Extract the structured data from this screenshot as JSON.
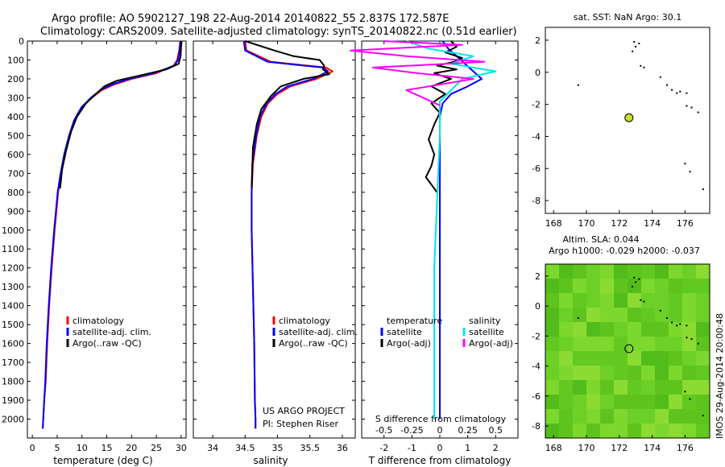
{
  "header": {
    "line1": "Argo profile: AO 5902127_198 22-Aug-2014 20140822_55 2.837S 172.587E",
    "line2": "Climatology: CARS2009. Satellite-adjusted climatology: synTS_20140822.nc (0.51d earlier)"
  },
  "colors": {
    "climatology": "#ff0000",
    "satellite": "#0000ff",
    "argo": "#000000",
    "salinity_satellite": "#00e5e5",
    "salinity_argo": "#ff00ff",
    "marker": "#c8e020",
    "sla_field": "#66cc22"
  },
  "chart_data": [
    {
      "type": "line",
      "panel": "temperature",
      "xlabel": "temperature (deg C)",
      "xlim": [
        -1,
        31
      ],
      "xticks": [
        "0",
        "5",
        "10",
        "15",
        "20",
        "25",
        "30"
      ],
      "ylim": [
        2100,
        0
      ],
      "yticks": [
        "0",
        "100",
        "200",
        "300",
        "400",
        "500",
        "600",
        "700",
        "800",
        "900",
        "1000",
        "1100",
        "1200",
        "1300",
        "1400",
        "1500",
        "1600",
        "1700",
        "1800",
        "1900",
        "2000"
      ],
      "legend": [
        "climatology",
        "satellite-adj. clim.",
        "Argo(..raw -QC)"
      ],
      "series": [
        {
          "name": "climatology",
          "color_key": "climatology",
          "x": [
            29.8,
            29.6,
            29.2,
            28.5,
            25.0,
            20.0,
            16.5,
            14.0,
            12.0,
            10.0,
            8.5,
            7.5,
            6.5,
            5.8,
            5.2,
            4.5,
            3.9,
            3.4,
            3.0,
            2.7,
            2.4,
            2.2,
            2.1
          ],
          "y": [
            0,
            50,
            100,
            130,
            170,
            200,
            230,
            260,
            300,
            350,
            420,
            500,
            600,
            700,
            800,
            1000,
            1200,
            1400,
            1600,
            1800,
            1900,
            2000,
            2050
          ]
        },
        {
          "name": "satellite-adj. clim.",
          "color_key": "satellite",
          "x": [
            29.9,
            29.7,
            29.4,
            28.6,
            24.5,
            19.5,
            16.0,
            13.7,
            11.8,
            9.9,
            8.4,
            7.4,
            6.4,
            5.7,
            5.1,
            4.4,
            3.8,
            3.3,
            2.9,
            2.6,
            2.4,
            2.2,
            2.1
          ],
          "y": [
            0,
            50,
            100,
            130,
            170,
            200,
            230,
            260,
            300,
            350,
            420,
            500,
            600,
            700,
            800,
            1000,
            1200,
            1400,
            1600,
            1800,
            1900,
            2000,
            2050
          ]
        },
        {
          "name": "Argo(..raw -QC)",
          "color_key": "argo",
          "x": [
            30.1,
            30.0,
            29.9,
            29.5,
            27.0,
            22.0,
            17.0,
            14.5,
            12.8,
            10.8,
            9.0,
            7.8,
            6.8,
            6.0,
            5.6
          ],
          "y": [
            0,
            30,
            80,
            120,
            150,
            180,
            210,
            240,
            280,
            330,
            400,
            480,
            580,
            680,
            780
          ]
        }
      ]
    },
    {
      "type": "line",
      "panel": "salinity",
      "xlabel": "salinity",
      "xlim": [
        33.7,
        36.2
      ],
      "xticks": [
        "34",
        "34.5",
        "35",
        "35.5",
        "36"
      ],
      "ylim": [
        2100,
        0
      ],
      "legend": [
        "climatology",
        "satellite-adj. clim.",
        "Argo(..raw -QC)"
      ],
      "annotation": [
        "US ARGO PROJECT",
        "PI: Stephen Riser"
      ],
      "series": [
        {
          "name": "climatology",
          "color_key": "climatology",
          "x": [
            34.5,
            34.52,
            34.9,
            35.75,
            35.85,
            35.6,
            35.2,
            35.0,
            34.85,
            34.75,
            34.68,
            34.62,
            34.6,
            34.6,
            34.62,
            34.64,
            34.65,
            34.66,
            34.66
          ],
          "y": [
            0,
            50,
            110,
            140,
            160,
            200,
            240,
            280,
            330,
            400,
            500,
            650,
            800,
            1000,
            1300,
            1600,
            1900,
            2000,
            2050
          ]
        },
        {
          "name": "satellite-adj. clim.",
          "color_key": "satellite",
          "x": [
            34.48,
            34.5,
            34.85,
            35.7,
            35.78,
            35.55,
            35.15,
            34.97,
            34.83,
            34.73,
            34.67,
            34.61,
            34.6,
            34.6,
            34.62,
            34.64,
            34.65,
            34.66,
            34.66
          ],
          "y": [
            0,
            50,
            110,
            140,
            160,
            200,
            240,
            280,
            330,
            400,
            500,
            650,
            800,
            1000,
            1300,
            1600,
            1900,
            2000,
            2050
          ]
        },
        {
          "name": "Argo(..raw -QC)",
          "color_key": "argo",
          "x": [
            34.5,
            34.95,
            35.25,
            35.65,
            35.72,
            35.7,
            35.8,
            35.4,
            35.05,
            34.9,
            34.75,
            34.68,
            34.62,
            34.6
          ],
          "y": [
            0,
            50,
            80,
            100,
            130,
            150,
            175,
            200,
            240,
            290,
            360,
            440,
            560,
            780
          ]
        }
      ]
    },
    {
      "type": "line",
      "panel": "difference",
      "xlabel": "T difference from climatology",
      "xlim": [
        -2.8,
        2.8
      ],
      "xticks": [
        "-2",
        "-1",
        "0",
        "1",
        "2"
      ],
      "x2label": "S difference from climatology",
      "x2ticks": [
        "-0.5",
        "-0.25",
        "0",
        "0.25",
        "0.5"
      ],
      "ylim": [
        2100,
        0
      ],
      "legend_left": [
        "temperature",
        "satellite",
        "Argo(-adj)"
      ],
      "legend_right": [
        "salinity",
        "satellite",
        "Argo(-adj)"
      ],
      "series": [
        {
          "name": "satellite",
          "color_key": "satellite",
          "x": [
            0.1,
            0.3,
            0.6,
            0.9,
            1.2,
            1.5,
            1.0,
            0.4,
            0.1,
            0.0,
            0.0,
            0.0,
            0.0
          ],
          "y": [
            0,
            40,
            80,
            120,
            160,
            200,
            240,
            280,
            330,
            400,
            600,
            1000,
            2000
          ]
        },
        {
          "name": "Argo(-adj)",
          "color_key": "argo",
          "x": [
            0.4,
            0.6,
            0.2,
            0.8,
            0.5,
            -0.1,
            0.6,
            -0.2,
            0.4,
            -0.3,
            0.2,
            -0.3,
            0.0,
            -0.2,
            -0.4,
            -0.2,
            -0.3,
            -0.5,
            -0.3,
            -0.1
          ],
          "y": [
            0,
            30,
            60,
            90,
            110,
            130,
            150,
            170,
            200,
            240,
            280,
            330,
            380,
            440,
            520,
            600,
            660,
            720,
            760,
            800
          ]
        },
        {
          "name": "satellite",
          "color_key": "salinity_satellite",
          "x": [
            -0.3,
            -0.1,
            0.3,
            0.1,
            0.5,
            0.2,
            0.1,
            0.0,
            0.0,
            -0.05,
            -0.05
          ],
          "y": [
            0,
            40,
            80,
            120,
            160,
            200,
            260,
            320,
            500,
            1200,
            2000
          ]
        },
        {
          "name": "Argo(-adj)",
          "color_key": "salinity_argo",
          "x": [
            -0.5,
            0.2,
            -0.8,
            -0.3,
            0.4,
            -0.6,
            -0.2,
            0.3,
            -0.3,
            0.0
          ],
          "y": [
            0,
            20,
            50,
            80,
            110,
            140,
            170,
            200,
            260,
            340
          ]
        }
      ]
    },
    {
      "type": "scatter",
      "panel": "sst-map",
      "title": "sat. SST: NaN Argo: 30.1",
      "xlim": [
        167.5,
        177.5
      ],
      "xticks": [
        "168",
        "170",
        "172",
        "174",
        "176"
      ],
      "ylim": [
        -8.8,
        2.8
      ],
      "yticks": [
        "2",
        "0",
        "-2",
        "-4",
        "-6",
        "-8"
      ],
      "marker": {
        "lon": 172.587,
        "lat": -2.837
      },
      "islands": [
        [
          172.9,
          1.9
        ],
        [
          173.0,
          1.6
        ],
        [
          173.2,
          1.8
        ],
        [
          172.8,
          1.3
        ],
        [
          173.3,
          0.4
        ],
        [
          173.5,
          0.3
        ],
        [
          174.5,
          -0.3
        ],
        [
          174.9,
          -0.8
        ],
        [
          175.2,
          -1.1
        ],
        [
          175.5,
          -1.3
        ],
        [
          175.7,
          -1.2
        ],
        [
          176.1,
          -1.3
        ],
        [
          176.4,
          -2.2
        ],
        [
          176.1,
          -2.1
        ],
        [
          176.8,
          -2.5
        ],
        [
          176.0,
          -5.7
        ],
        [
          176.3,
          -6.2
        ],
        [
          177.1,
          -7.3
        ],
        [
          169.5,
          -0.8
        ]
      ]
    },
    {
      "type": "heatmap",
      "panel": "sla-map",
      "title": [
        "Altim. SLA: 0.044",
        "Argo h1000: -0.029 h2000: -0.037"
      ],
      "xlim": [
        167.5,
        177.5
      ],
      "xticks": [
        "168",
        "170",
        "172",
        "174",
        "176"
      ],
      "ylim": [
        -8.8,
        2.8
      ],
      "yticks": [
        "2",
        "0",
        "-2",
        "-4",
        "-6",
        "-8"
      ],
      "marker": {
        "lon": 172.587,
        "lat": -2.837
      },
      "side_label": "IMOS 29-Aug-2014 20:00:48"
    }
  ]
}
